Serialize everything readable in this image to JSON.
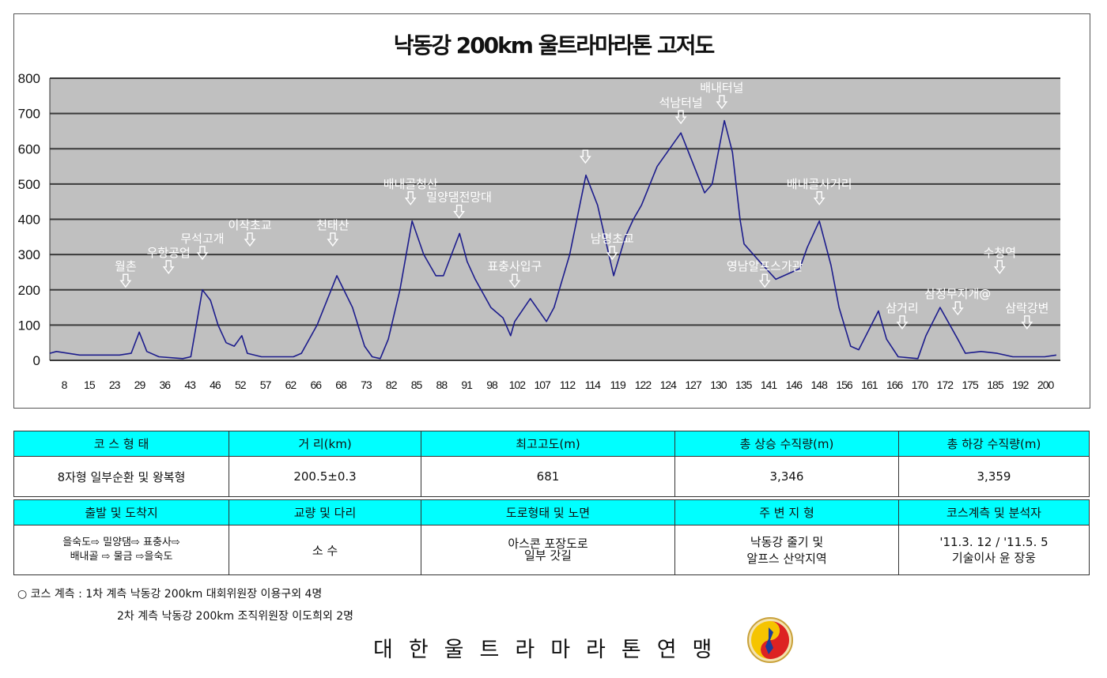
{
  "title": "낙동강 200km 울트라마라톤 고저도",
  "chart_data": {
    "type": "line",
    "title": "낙동강 200km 울트라마라톤 고저도",
    "xlabel": "",
    "ylabel": "",
    "ylim": [
      0,
      800
    ],
    "xlim": [
      0,
      200
    ],
    "yticks": [
      0,
      100,
      200,
      300,
      400,
      500,
      600,
      700,
      800
    ],
    "xtick_labels": [
      "8",
      "15",
      "23",
      "29",
      "36",
      "43",
      "46",
      "52",
      "57",
      "62",
      "66",
      "68",
      "73",
      "82",
      "85",
      "88",
      "91",
      "98",
      "102",
      "107",
      "112",
      "114",
      "119",
      "122",
      "124",
      "127",
      "130",
      "135",
      "141",
      "146",
      "148",
      "156",
      "161",
      "166",
      "170",
      "172",
      "175",
      "185",
      "192",
      "200"
    ],
    "grid": true,
    "series": [
      {
        "name": "고도(m)",
        "color": "#1c1c8c",
        "x": [
          0,
          1.3,
          5.9,
          13.8,
          16.1,
          17.7,
          19.2,
          21.6,
          26.3,
          27.9,
          30.2,
          31.8,
          33.3,
          34.9,
          36.5,
          38,
          39.1,
          41.9,
          48.2,
          49.8,
          52.9,
          56.8,
          59.9,
          62.3,
          63.8,
          65.4,
          67,
          69.3,
          71.7,
          74,
          76.4,
          77.9,
          79.5,
          81.1,
          82.6,
          84.2,
          87.3,
          89.7,
          91.2,
          92,
          95.1,
          98.3,
          99.8,
          102.9,
          106.1,
          108.4,
          111.6,
          113.9,
          115.5,
          117.1,
          120.2,
          124.9,
          129.6,
          131.1,
          133.5,
          135.1,
          136.6,
          137.4,
          140.5,
          143.7,
          148.4,
          149.9,
          152.3,
          154.6,
          156.2,
          158.5,
          160.1,
          164,
          165.6,
          167.9,
          171.8,
          173.4,
          176.2,
          179.7,
          181.2,
          184.3,
          187.5,
          190.6,
          196.9,
          199.2
        ],
        "y": [
          20,
          25,
          15,
          15,
          20,
          80,
          25,
          10,
          5,
          10,
          200,
          170,
          100,
          50,
          40,
          70,
          20,
          10,
          10,
          20,
          100,
          240,
          150,
          40,
          10,
          5,
          60,
          200,
          395,
          300,
          240,
          240,
          300,
          360,
          280,
          230,
          150,
          120,
          70,
          110,
          175,
          110,
          150,
          300,
          525,
          440,
          240,
          350,
          400,
          440,
          550,
          645,
          475,
          500,
          680,
          590,
          400,
          330,
          280,
          230,
          260,
          320,
          395,
          270,
          150,
          40,
          30,
          140,
          60,
          10,
          5,
          70,
          150,
          60,
          20,
          25,
          20,
          10,
          10,
          15
        ]
      }
    ],
    "annotations": [
      {
        "label": "월촌",
        "x": 15,
        "elev": 208
      },
      {
        "label": "우항공업",
        "x": 23.5,
        "elev": 247
      },
      {
        "label": "무석고개",
        "x": 30.2,
        "elev": 287
      },
      {
        "label": "이작초교",
        "x": 39.6,
        "elev": 325
      },
      {
        "label": "천태산",
        "x": 56,
        "elev": 325
      },
      {
        "label": "배내골청산",
        "x": 71.4,
        "elev": 442
      },
      {
        "label": "밀양댐전망대",
        "x": 81,
        "elev": 404
      },
      {
        "label": "표충사입구",
        "x": 92,
        "elev": 208
      },
      {
        "label": "",
        "x": 106,
        "elev": 560
      },
      {
        "label": "남명초교",
        "x": 111.3,
        "elev": 287
      },
      {
        "label": "석남터널",
        "x": 124.9,
        "elev": 672
      },
      {
        "label": "배내터널",
        "x": 133,
        "elev": 715
      },
      {
        "label": "영남알프스가관",
        "x": 141.5,
        "elev": 208
      },
      {
        "label": "배내골사거리",
        "x": 152.3,
        "elev": 442
      },
      {
        "label": "삼거리",
        "x": 168.7,
        "elev": 90
      },
      {
        "label": "삼정무지개@",
        "x": 179.7,
        "elev": 130
      },
      {
        "label": "수청역",
        "x": 188,
        "elev": 247
      },
      {
        "label": "삼락강변",
        "x": 193.4,
        "elev": 90
      }
    ]
  },
  "table": {
    "row1_headers": [
      "코 스 형 태",
      "거  리(km)",
      "최고고도(m)",
      "총 상승 수직량(m)",
      "총 하강 수직량(m)"
    ],
    "row1_values": [
      "8자형 일부순환 및 왕복형",
      "200.5±0.3",
      "681",
      "3,346",
      "3,359"
    ],
    "row2_headers": [
      "출발 및 도착지",
      "교량 및 다리",
      "도로형태 및 노면",
      "주 변 지 형",
      "코스계측 및 분석자"
    ],
    "row2_values": [
      [
        "을숙도⇨ 밀양댐⇨ 표충사⇨",
        "배내골 ⇨ 물금 ⇨을숙도"
      ],
      [
        "소 수"
      ],
      [
        "아스콘 포장도로",
        "일부 갓길"
      ],
      [
        "낙동강 줄기 및",
        "알프스 산악지역"
      ],
      [
        "'11.3. 12  / '11.5. 5",
        "기술이사 윤 장웅"
      ]
    ]
  },
  "notes": [
    "○ 코스 계측 : 1차 계측 낙동강 200km 대회위원장 이용구외 4명",
    "2차 계측 낙동강 200km 조직위원장 이도희외 2명"
  ],
  "organization": "대한울트라마라톤연맹"
}
